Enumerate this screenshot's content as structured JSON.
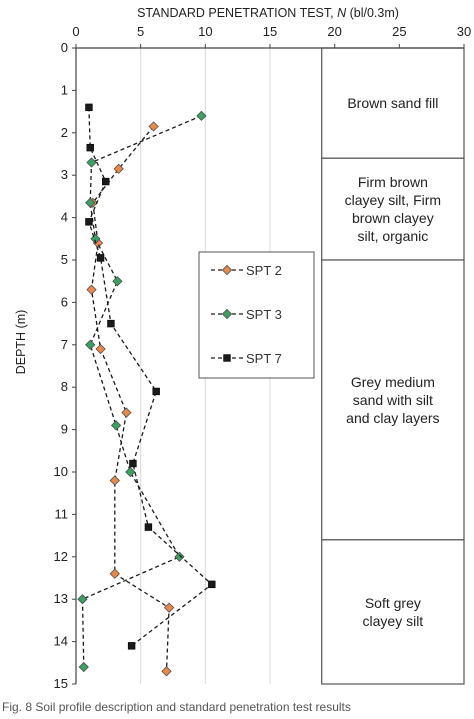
{
  "chart_data": {
    "type": "scatter",
    "x_title_prefix": "STANDARD PENETRATION TEST, ",
    "x_title_var": "N",
    "x_title_suffix": " (bl/0.3m)",
    "ylabel": "DEPTH (m)",
    "xlim": [
      0,
      30
    ],
    "ylim": [
      0,
      15
    ],
    "x_ticks": [
      0,
      5,
      10,
      15,
      20,
      25,
      30
    ],
    "y_ticks": [
      0,
      1,
      2,
      3,
      4,
      5,
      6,
      7,
      8,
      9,
      10,
      11,
      12,
      13,
      14,
      15
    ],
    "x_axis_position": "top",
    "y_axis_inverted": true,
    "legend_position": "center",
    "series": [
      {
        "name": "SPT 2",
        "marker": "diamond",
        "color": "#e8894a",
        "points": [
          [
            6.0,
            1.85
          ],
          [
            3.3,
            2.85
          ],
          [
            1.3,
            3.65
          ],
          [
            1.7,
            4.6
          ],
          [
            1.2,
            5.7
          ],
          [
            1.9,
            7.1
          ],
          [
            3.9,
            8.6
          ],
          [
            3.0,
            10.2
          ],
          [
            3.0,
            12.4
          ],
          [
            7.2,
            13.2
          ],
          [
            7.0,
            14.7
          ]
        ]
      },
      {
        "name": "SPT 3",
        "marker": "diamond",
        "color": "#3aa163",
        "points": [
          [
            9.7,
            1.6
          ],
          [
            1.2,
            2.7
          ],
          [
            1.1,
            3.65
          ],
          [
            1.5,
            4.5
          ],
          [
            3.2,
            5.5
          ],
          [
            1.1,
            7.0
          ],
          [
            3.1,
            8.9
          ],
          [
            4.2,
            10.0
          ],
          [
            8.0,
            12.0
          ],
          [
            0.5,
            13.0
          ],
          [
            0.6,
            14.6
          ]
        ]
      },
      {
        "name": "SPT 7",
        "marker": "square",
        "color": "#1a1a1a",
        "points": [
          [
            1.0,
            1.4
          ],
          [
            1.1,
            2.35
          ],
          [
            2.3,
            3.15
          ],
          [
            1.0,
            4.1
          ],
          [
            1.9,
            4.95
          ],
          [
            2.7,
            6.5
          ],
          [
            6.2,
            8.1
          ],
          [
            4.4,
            9.8
          ],
          [
            5.6,
            11.3
          ],
          [
            10.5,
            12.65
          ],
          [
            4.3,
            14.1
          ]
        ]
      }
    ],
    "annotations": [
      {
        "lines": [
          "Brown sand fill"
        ],
        "top": 0,
        "bottom": 2.6
      },
      {
        "lines": [
          "Firm brown",
          "clayey silt, Firm",
          "brown clayey",
          "silt, organic"
        ],
        "top": 2.6,
        "bottom": 5.0
      },
      {
        "lines": [
          "Grey medium",
          "sand with silt",
          "and clay layers"
        ],
        "top": 5.0,
        "bottom": 11.6
      },
      {
        "lines": [
          "Soft grey",
          "clayey silt"
        ],
        "top": 11.6,
        "bottom": 15.0
      }
    ],
    "layer_box_x": [
      19,
      30
    ]
  },
  "caption": "Fig. 8  Soil profile description and standard penetration test results"
}
